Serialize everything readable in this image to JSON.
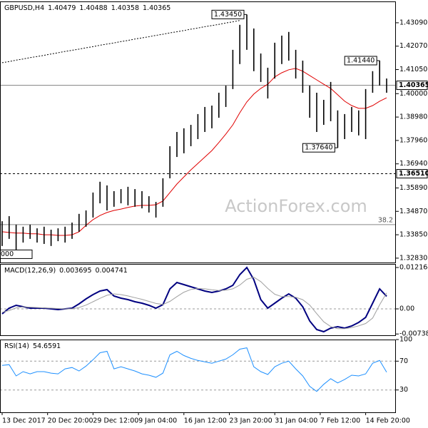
{
  "chart_data": [
    {
      "type": "price",
      "title": "GBPUSD,H4",
      "quote": [
        1.40479,
        1.40488,
        1.40358,
        1.40365
      ],
      "watermark": "ActionForex.com",
      "ylim": [
        1.3264,
        1.4402
      ],
      "yticks": [
        {
          "value": 1.4309,
          "label": "1.43090"
        },
        {
          "value": 1.4207,
          "label": "1.42070"
        },
        {
          "value": 1.4105,
          "label": "1.41050"
        },
        {
          "value": 1.4,
          "label": "1.40000"
        },
        {
          "value": 1.3898,
          "label": "1.38980"
        },
        {
          "value": 1.3796,
          "label": "1.37960"
        },
        {
          "value": 1.3694,
          "label": "1.36940"
        },
        {
          "value": 1.3589,
          "label": "1.35890"
        },
        {
          "value": 1.3487,
          "label": "1.34870"
        },
        {
          "value": 1.3385,
          "label": "1.33850"
        },
        {
          "value": 1.3283,
          "label": "1.32830"
        }
      ],
      "xticks": [
        {
          "value": 0,
          "label": "13 Dec 2017"
        },
        {
          "value": 6.5,
          "label": "20 Dec 20:00"
        },
        {
          "value": 13,
          "label": "29 Dec 12:00"
        },
        {
          "value": 19.5,
          "label": "9 Jan 04:00"
        },
        {
          "value": 26,
          "label": "16 Jan 12:00"
        },
        {
          "value": 32.5,
          "label": "23 Jan 20:00"
        },
        {
          "value": 39,
          "label": "31 Jan 04:00"
        },
        {
          "value": 45.5,
          "label": "7 Feb 12:00"
        },
        {
          "value": 52,
          "label": "14 Feb 20:00"
        }
      ],
      "bar_color": "#000000",
      "high": [
        1.3444,
        1.3466,
        1.3429,
        1.342,
        1.3429,
        1.3413,
        1.342,
        1.3407,
        1.3413,
        1.342,
        1.3438,
        1.3476,
        1.3491,
        1.3569,
        1.3616,
        1.36,
        1.3575,
        1.3584,
        1.3594,
        1.3584,
        1.3575,
        1.3553,
        1.3528,
        1.3631,
        1.3771,
        1.3833,
        1.3849,
        1.3864,
        1.3911,
        1.3942,
        1.3948,
        1.4004,
        1.4035,
        1.4191,
        1.43,
        1.4345,
        1.4284,
        1.4175,
        1.4113,
        1.4222,
        1.4253,
        1.4269,
        1.4191,
        1.4144,
        1.4035,
        1.4004,
        1.3973,
        1.4051,
        1.3927,
        1.3911,
        1.3942,
        1.3927,
        1.402,
        1.4098,
        1.4144,
        1.4066
      ],
      "low": [
        1.3336,
        1.3367,
        1.332,
        1.3351,
        1.3367,
        1.3351,
        1.3345,
        1.3336,
        1.3357,
        1.3351,
        1.3367,
        1.3398,
        1.342,
        1.346,
        1.3522,
        1.3491,
        1.3507,
        1.3522,
        1.3513,
        1.3507,
        1.35,
        1.3482,
        1.346,
        1.3507,
        1.3631,
        1.3724,
        1.374,
        1.3771,
        1.3802,
        1.3833,
        1.3849,
        1.3895,
        1.3942,
        1.402,
        1.4129,
        1.4191,
        1.4098,
        1.4051,
        1.3979,
        1.4066,
        1.4129,
        1.4144,
        1.4066,
        1.4004,
        1.3895,
        1.3833,
        1.3864,
        1.388,
        1.3764,
        1.3802,
        1.3833,
        1.3818,
        1.3802,
        1.4004,
        1.4035,
        1.4004
      ],
      "series": [
        {
          "color": "#e00000",
          "dashed": false,
          "values": [
            1.3398,
            1.3395,
            1.3392,
            1.3392,
            1.3389,
            1.3389,
            1.3385,
            1.3385,
            1.3382,
            1.3382,
            1.3385,
            1.3398,
            1.3426,
            1.3451,
            1.3469,
            1.3482,
            1.3491,
            1.3497,
            1.3504,
            1.351,
            1.3513,
            1.3513,
            1.3516,
            1.3532,
            1.3569,
            1.3606,
            1.3637,
            1.3668,
            1.3696,
            1.3724,
            1.3752,
            1.3787,
            1.3824,
            1.3864,
            1.3917,
            1.3964,
            1.3998,
            1.4023,
            1.4041,
            1.4073,
            1.4091,
            1.4104,
            1.411,
            1.4098,
            1.4079,
            1.406,
            1.4041,
            1.4023,
            1.3995,
            1.3967,
            1.3948,
            1.3936,
            1.3936,
            1.3948,
            1.3967,
            1.3982
          ]
        },
        {
          "color": "#000000",
          "dashed": true,
          "values": [
            1.4135,
            1.414,
            1.4146,
            1.4151,
            1.4157,
            1.4162,
            1.4167,
            1.4173,
            1.4178,
            1.4184,
            1.4189,
            1.4194,
            1.42,
            1.4205,
            1.4211,
            1.4216,
            1.4221,
            1.4227,
            1.4232,
            1.4238,
            1.4243,
            1.4248,
            1.4254,
            1.4259,
            1.4265,
            1.427,
            1.4275,
            1.4281,
            1.4286,
            1.4292,
            1.4297,
            1.4302,
            1.4308,
            1.4313,
            1.4319,
            null,
            null,
            null,
            null,
            null,
            null,
            null,
            null,
            null,
            null,
            null,
            null,
            null,
            null,
            null,
            null,
            null,
            null,
            null,
            null,
            null
          ]
        }
      ],
      "levels": [
        {
          "value": 1.40365,
          "label": "1.40365",
          "style": "solid",
          "label_at": "axis"
        },
        {
          "value": 1.3651,
          "label": "1.36510",
          "style": "dashed",
          "label_at": "axis"
        },
        {
          "value": 1.3429,
          "label": "38.2",
          "style": "solid",
          "label_at": "inside"
        }
      ],
      "annotations": [
        {
          "label": "1.43450",
          "value": 1.4345,
          "x": 35,
          "side": "left"
        },
        {
          "label": "1.41440",
          "value": 1.4144,
          "x": 54,
          "side": "left"
        },
        {
          "label": "1.37640",
          "value": 1.3764,
          "x": 48,
          "side": "left"
        },
        {
          "label": "000",
          "value": 1.33,
          "x": 0,
          "side": "right"
        }
      ]
    },
    {
      "type": "macd",
      "title": "MACD(12,26,9)",
      "indicator_values": [
        0.003695,
        0.004741
      ],
      "ylim": [
        -0.00776,
        0.01321
      ],
      "yticks": [
        0.012164,
        {
          "value": 0,
          "label": "0.00"
        },
        -0.007384
      ],
      "series": [
        {
          "color": "#000080",
          "width": 2,
          "values": [
            -0.00147,
            0.00021,
            0.00105,
            0.00063,
            0.00021,
            0.00021,
            0.00021,
            0,
            -0.00021,
            0,
            0.00021,
            0.00147,
            0.00294,
            0.00419,
            0.00524,
            0.00566,
            0.00377,
            0.00315,
            0.00273,
            0.0021,
            0.00168,
            0.00105,
            0.00021,
            0.00126,
            0.00587,
            0.00776,
            0.00713,
            0.0065,
            0.00587,
            0.00524,
            0.00482,
            0.00524,
            0.00587,
            0.00692,
            0.01007,
            0.01216,
            0.0086,
            0.00273,
            0.00021,
            0.00168,
            0.00315,
            0.0044,
            0.00315,
            0.00063,
            -0.00356,
            -0.00608,
            -0.00671,
            -0.00566,
            -0.00524,
            -0.00566,
            -0.00503,
            -0.00398,
            -0.00252,
            0.00168,
            0.00587,
            0.0037
          ]
        },
        {
          "color": "#a0a0a0",
          "width": 1,
          "values": [
            -0.001,
            -0.0005,
            0.0003,
            0.0006,
            0.0005,
            0.0004,
            0.0003,
            0.0002,
            0.0001,
            0,
            0,
            0.0004,
            0.0011,
            0.0021,
            0.0031,
            0.004,
            0.0044,
            0.0042,
            0.0038,
            0.0033,
            0.0028,
            0.0022,
            0.0016,
            0.0013,
            0.0022,
            0.0036,
            0.0049,
            0.0057,
            0.006,
            0.0059,
            0.0056,
            0.0054,
            0.0055,
            0.0059,
            0.007,
            0.0087,
            0.0093,
            0.008,
            0.006,
            0.0043,
            0.0036,
            0.0036,
            0.0034,
            0.0027,
            0.0011,
            -0.0014,
            -0.0038,
            -0.0052,
            -0.0058,
            -0.0058,
            -0.0055,
            -0.005,
            -0.0043,
            -0.0027,
            0.0012,
            0.0047
          ]
        }
      ]
    },
    {
      "type": "rsi",
      "title": "RSI(14)",
      "indicator_values": [
        54.6591
      ],
      "ylim": [
        -1,
        100
      ],
      "yticks": [
        100,
        70,
        30
      ],
      "grid": true,
      "series": [
        {
          "color": "#1e90ff",
          "width": 1,
          "values": [
            64.1,
            65.1,
            49.5,
            55.4,
            52.4,
            55.4,
            55.4,
            53.4,
            52.4,
            59.3,
            61.2,
            56.3,
            63.2,
            72,
            81.7,
            83.7,
            59.3,
            62.2,
            59.3,
            56.3,
            52.4,
            50.5,
            47.6,
            53.4,
            78.8,
            83.7,
            77.8,
            73.9,
            71,
            69,
            67.1,
            70,
            72.9,
            78.8,
            86.6,
            88.5,
            62.2,
            55.4,
            51.5,
            62.2,
            67.1,
            70,
            59.3,
            49.5,
            34.9,
            28,
            37.8,
            45.6,
            39.8,
            44.6,
            50.5,
            49.5,
            52.4,
            67.1,
            71,
            54.7
          ]
        }
      ]
    }
  ]
}
